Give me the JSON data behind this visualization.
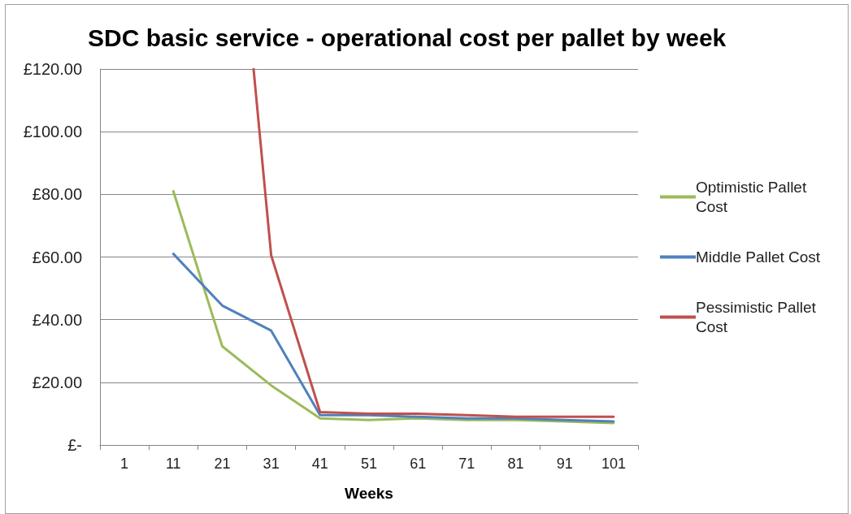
{
  "chart_data": {
    "type": "line",
    "title": "SDC basic service - operational cost per pallet by week",
    "xlabel": "Weeks",
    "x": [
      11,
      21,
      31,
      41,
      51,
      61,
      71,
      81,
      91,
      101
    ],
    "series": [
      {
        "name": "Optimistic Pallet Cost",
        "color": "#9bbb59",
        "values": [
          81,
          31.5,
          19,
          8.5,
          8,
          8.5,
          8,
          8,
          7.5,
          7
        ]
      },
      {
        "name": "Middle Pallet Cost",
        "color": "#4f81bd",
        "values": [
          61,
          44.5,
          36.5,
          9.5,
          9.5,
          9,
          8.5,
          8.5,
          8,
          7.5
        ]
      },
      {
        "name": "Pessimistic Pallet Cost",
        "color": "#c0504d",
        "x": [
          27.4,
          31,
          41,
          51,
          61,
          71,
          81,
          91,
          101
        ],
        "values": [
          120,
          60.5,
          10.5,
          10,
          10,
          9.5,
          9,
          9,
          9
        ]
      }
    ],
    "xlim": [
      -4,
      106
    ],
    "xticks": [
      {
        "value": -4,
        "label": null
      },
      1,
      {
        "value": 6,
        "label": null
      },
      11,
      {
        "value": 16,
        "label": null
      },
      21,
      {
        "value": 26,
        "label": null
      },
      31,
      {
        "value": 36,
        "label": null
      },
      41,
      {
        "value": 46,
        "label": null
      },
      51,
      {
        "value": 56,
        "label": null
      },
      61,
      {
        "value": 66,
        "label": null
      },
      71,
      {
        "value": 76,
        "label": null
      },
      81,
      {
        "value": 86,
        "label": null
      },
      91,
      {
        "value": 96,
        "label": null
      },
      101,
      {
        "value": 106,
        "label": null
      }
    ],
    "ylim": [
      0,
      120
    ],
    "yticks": [
      {
        "value": 0,
        "label": "£-"
      },
      {
        "value": 20,
        "label": "£20.00"
      },
      {
        "value": 40,
        "label": "£40.00"
      },
      {
        "value": 60,
        "label": "£60.00"
      },
      {
        "value": 80,
        "label": "£80.00"
      },
      {
        "value": 100,
        "label": "£100.00"
      },
      {
        "value": 120,
        "label": "£120.00"
      }
    ],
    "grid": "y",
    "legend": "right",
    "marker": "none",
    "line_style": "solid"
  }
}
